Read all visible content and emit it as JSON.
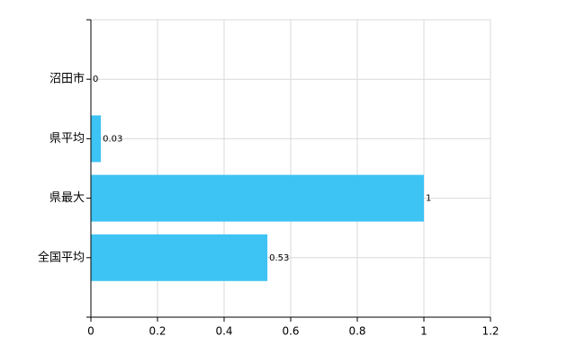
{
  "chart_data": {
    "type": "barh",
    "categories": [
      "沼田市",
      "県平均",
      "県最大",
      "全国平均"
    ],
    "values": [
      0,
      0.03,
      1,
      0.53
    ],
    "color": "#3ec3f5",
    "xlim": [
      0,
      1.2
    ],
    "xticks": [
      0,
      0.2,
      0.4,
      0.6,
      0.8,
      1,
      1.2
    ],
    "grid": true
  }
}
